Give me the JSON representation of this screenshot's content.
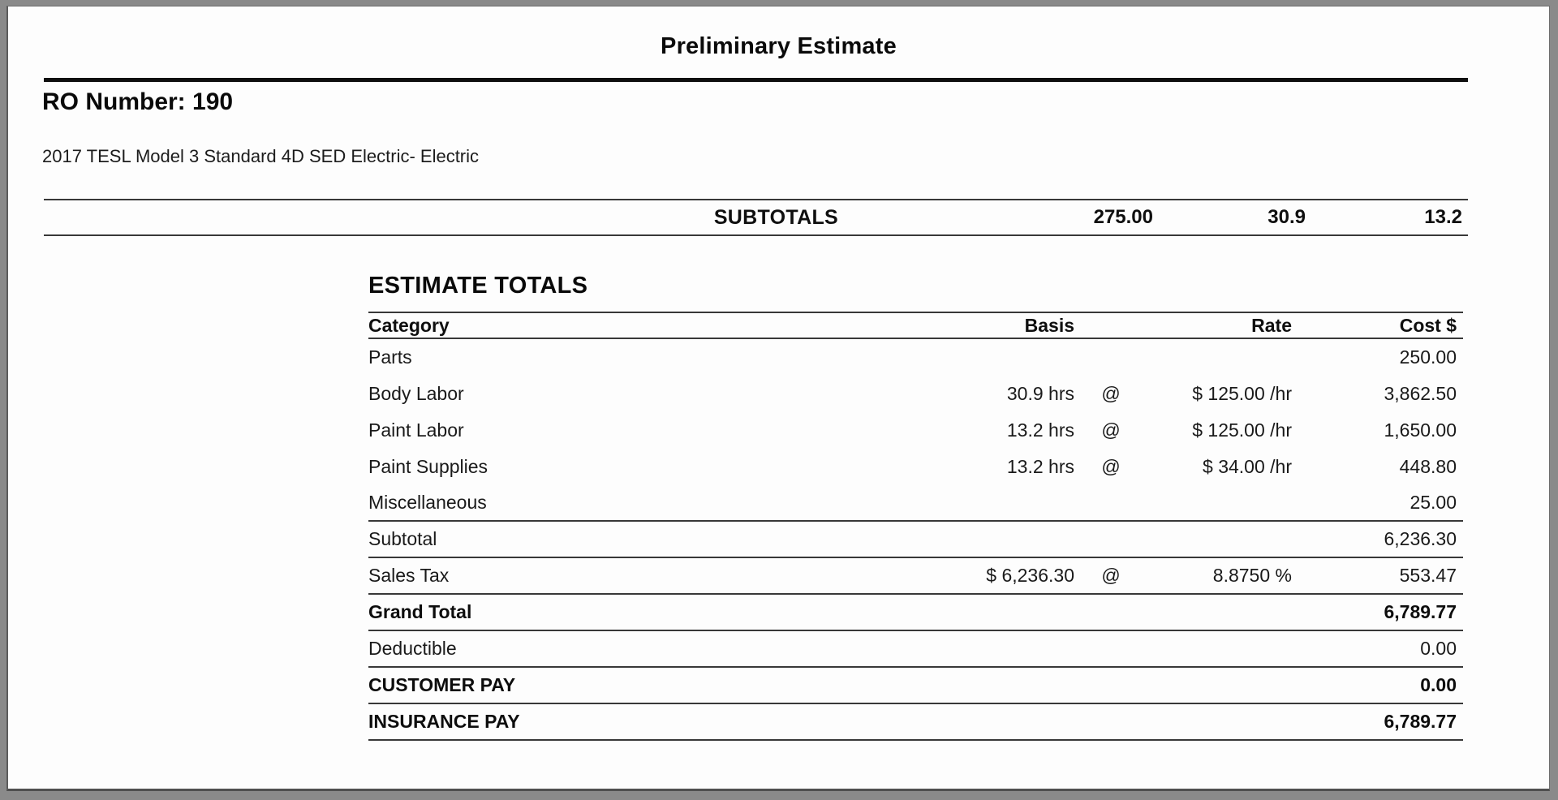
{
  "header": {
    "title": "Preliminary Estimate",
    "ro_number": "RO Number: 190",
    "vehicle": "2017 TESL Model 3 Standard 4D SED Electric- Electric"
  },
  "subtotals": {
    "label": "SUBTOTALS",
    "values": [
      "275.00",
      "30.9",
      "13.2"
    ]
  },
  "estimate_totals": {
    "heading": "ESTIMATE TOTALS",
    "columns": [
      "Category",
      "Basis",
      "Rate",
      "Cost $"
    ],
    "rows": [
      {
        "category": "Parts",
        "basis": "",
        "at": "",
        "rate": "",
        "cost": "250.00"
      },
      {
        "category": "Body Labor",
        "basis": "30.9 hrs",
        "at": "@",
        "rate": "$ 125.00 /hr",
        "cost": "3,862.50"
      },
      {
        "category": "Paint Labor",
        "basis": "13.2 hrs",
        "at": "@",
        "rate": "$ 125.00 /hr",
        "cost": "1,650.00"
      },
      {
        "category": "Paint Supplies",
        "basis": "13.2 hrs",
        "at": "@",
        "rate": "$ 34.00 /hr",
        "cost": "448.80"
      },
      {
        "category": "Miscellaneous",
        "basis": "",
        "at": "",
        "rate": "",
        "cost": "25.00"
      },
      {
        "category": "Subtotal",
        "basis": "",
        "at": "",
        "rate": "",
        "cost": "6,236.30"
      },
      {
        "category": "Sales Tax",
        "basis": "$ 6,236.30",
        "at": "@",
        "rate": "8.8750 %",
        "cost": "553.47"
      },
      {
        "category": "Grand Total",
        "basis": "",
        "at": "",
        "rate": "",
        "cost": "6,789.77"
      },
      {
        "category": "Deductible",
        "basis": "",
        "at": "",
        "rate": "",
        "cost": "0.00"
      },
      {
        "category": "CUSTOMER PAY",
        "basis": "",
        "at": "",
        "rate": "",
        "cost": "0.00"
      },
      {
        "category": "INSURANCE PAY",
        "basis": "",
        "at": "",
        "rate": "",
        "cost": "6,789.77"
      }
    ]
  }
}
